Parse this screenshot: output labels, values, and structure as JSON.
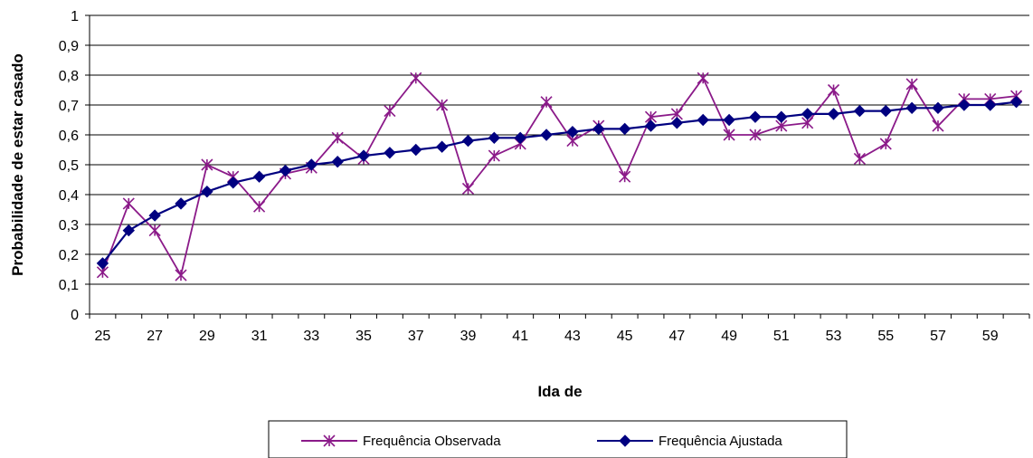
{
  "chart_data": {
    "type": "line",
    "xlabel": "Ida de",
    "ylabel": "Probabilidade de estar casado",
    "ylim": [
      0,
      1
    ],
    "y_ticks": [
      "0",
      "0,1",
      "0,2",
      "0,3",
      "0,4",
      "0,5",
      "0,6",
      "0,7",
      "0,8",
      "0,9",
      "1"
    ],
    "x": [
      25,
      26,
      27,
      28,
      29,
      30,
      31,
      32,
      33,
      34,
      35,
      36,
      37,
      38,
      39,
      40,
      41,
      42,
      43,
      44,
      45,
      46,
      47,
      48,
      49,
      50,
      51,
      52,
      53,
      54,
      55,
      56,
      57,
      58,
      59,
      60
    ],
    "x_tick_labels": [
      "25",
      "27",
      "29",
      "31",
      "33",
      "35",
      "37",
      "39",
      "41",
      "43",
      "45",
      "47",
      "49",
      "51",
      "53",
      "55",
      "57",
      "59"
    ],
    "grid": "horizontal",
    "legend_position": "bottom",
    "series": [
      {
        "name": "Frequência Observada",
        "color": "#8B1A89",
        "marker": "asterisk",
        "values": [
          0.14,
          0.37,
          0.28,
          0.13,
          0.5,
          0.46,
          0.36,
          0.47,
          0.49,
          0.59,
          0.52,
          0.68,
          0.79,
          0.7,
          0.42,
          0.53,
          0.57,
          0.71,
          0.58,
          0.63,
          0.46,
          0.66,
          0.67,
          0.79,
          0.6,
          0.6,
          0.63,
          0.64,
          0.75,
          0.52,
          0.57,
          0.77,
          0.63,
          0.72,
          0.72,
          0.73
        ]
      },
      {
        "name": "Frequência Ajustada",
        "color": "#000080",
        "marker": "diamond",
        "values": [
          0.17,
          0.28,
          0.33,
          0.37,
          0.41,
          0.44,
          0.46,
          0.48,
          0.5,
          0.51,
          0.53,
          0.54,
          0.55,
          0.56,
          0.58,
          0.59,
          0.59,
          0.6,
          0.61,
          0.62,
          0.62,
          0.63,
          0.64,
          0.65,
          0.65,
          0.66,
          0.66,
          0.67,
          0.67,
          0.68,
          0.68,
          0.69,
          0.69,
          0.7,
          0.7,
          0.71
        ]
      }
    ]
  }
}
